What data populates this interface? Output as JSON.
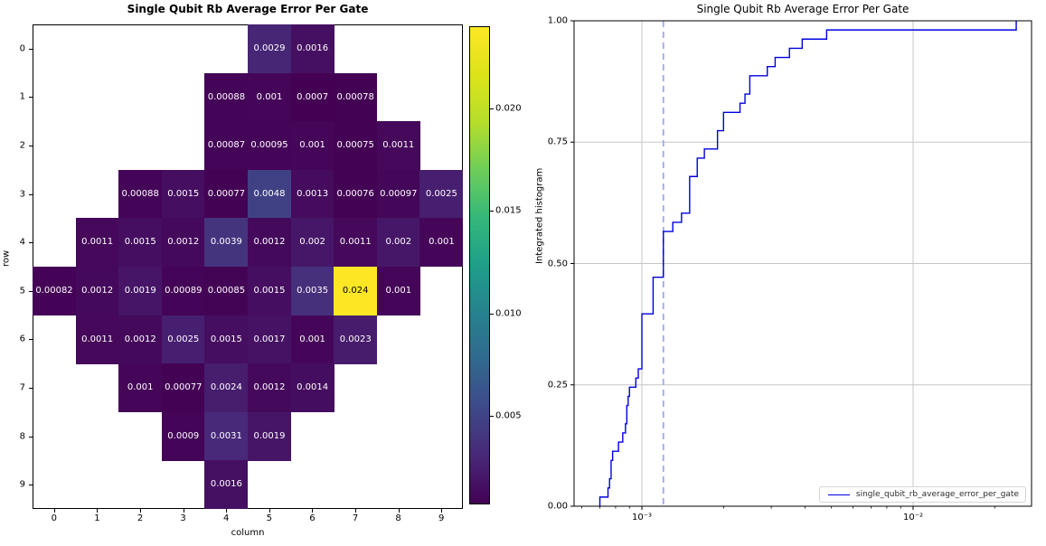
{
  "figure": {
    "background": "#ffffff",
    "spine_color": "#000000",
    "grid_color": "#c6c6c6"
  },
  "chart_data": [
    {
      "type": "heatmap",
      "title": "Single Qubit Rb Average Error Per Gate",
      "xlabel": "column",
      "ylabel": "row",
      "x_ticks": [
        "0",
        "1",
        "2",
        "3",
        "4",
        "5",
        "6",
        "7",
        "8",
        "9"
      ],
      "y_ticks": [
        "0",
        "1",
        "2",
        "3",
        "4",
        "5",
        "6",
        "7",
        "8",
        "9"
      ],
      "colormap": "viridis",
      "vmin": 0.0007,
      "vmax": 0.024,
      "colorbar_tick_values": [
        0.005,
        0.01,
        0.015,
        0.02
      ],
      "colorbar_tick_labels": [
        "0.005",
        "0.010",
        "0.015",
        "0.020"
      ],
      "cells": [
        {
          "row": 0,
          "col": 5,
          "value": 0.0029,
          "label": "0.0029"
        },
        {
          "row": 0,
          "col": 6,
          "value": 0.0016,
          "label": "0.0016"
        },
        {
          "row": 1,
          "col": 4,
          "value": 0.00088,
          "label": "0.00088"
        },
        {
          "row": 1,
          "col": 5,
          "value": 0.001,
          "label": "0.001"
        },
        {
          "row": 1,
          "col": 6,
          "value": 0.0007,
          "label": "0.0007"
        },
        {
          "row": 1,
          "col": 7,
          "value": 0.00078,
          "label": "0.00078"
        },
        {
          "row": 2,
          "col": 4,
          "value": 0.00087,
          "label": "0.00087"
        },
        {
          "row": 2,
          "col": 5,
          "value": 0.00095,
          "label": "0.00095"
        },
        {
          "row": 2,
          "col": 6,
          "value": 0.001,
          "label": "0.001"
        },
        {
          "row": 2,
          "col": 7,
          "value": 0.00075,
          "label": "0.00075"
        },
        {
          "row": 2,
          "col": 8,
          "value": 0.0011,
          "label": "0.0011"
        },
        {
          "row": 3,
          "col": 2,
          "value": 0.00088,
          "label": "0.00088"
        },
        {
          "row": 3,
          "col": 3,
          "value": 0.0015,
          "label": "0.0015"
        },
        {
          "row": 3,
          "col": 4,
          "value": 0.00077,
          "label": "0.00077"
        },
        {
          "row": 3,
          "col": 5,
          "value": 0.0048,
          "label": "0.0048"
        },
        {
          "row": 3,
          "col": 6,
          "value": 0.0013,
          "label": "0.0013"
        },
        {
          "row": 3,
          "col": 7,
          "value": 0.00076,
          "label": "0.00076"
        },
        {
          "row": 3,
          "col": 8,
          "value": 0.00097,
          "label": "0.00097"
        },
        {
          "row": 3,
          "col": 9,
          "value": 0.0025,
          "label": "0.0025"
        },
        {
          "row": 4,
          "col": 1,
          "value": 0.0011,
          "label": "0.0011"
        },
        {
          "row": 4,
          "col": 2,
          "value": 0.0015,
          "label": "0.0015"
        },
        {
          "row": 4,
          "col": 3,
          "value": 0.0012,
          "label": "0.0012"
        },
        {
          "row": 4,
          "col": 4,
          "value": 0.0039,
          "label": "0.0039"
        },
        {
          "row": 4,
          "col": 5,
          "value": 0.0012,
          "label": "0.0012"
        },
        {
          "row": 4,
          "col": 6,
          "value": 0.002,
          "label": "0.002"
        },
        {
          "row": 4,
          "col": 7,
          "value": 0.0011,
          "label": "0.0011"
        },
        {
          "row": 4,
          "col": 8,
          "value": 0.002,
          "label": "0.002"
        },
        {
          "row": 4,
          "col": 9,
          "value": 0.001,
          "label": "0.001"
        },
        {
          "row": 5,
          "col": 0,
          "value": 0.00082,
          "label": "0.00082"
        },
        {
          "row": 5,
          "col": 1,
          "value": 0.0012,
          "label": "0.0012"
        },
        {
          "row": 5,
          "col": 2,
          "value": 0.0019,
          "label": "0.0019"
        },
        {
          "row": 5,
          "col": 3,
          "value": 0.00089,
          "label": "0.00089"
        },
        {
          "row": 5,
          "col": 4,
          "value": 0.00085,
          "label": "0.00085"
        },
        {
          "row": 5,
          "col": 5,
          "value": 0.0015,
          "label": "0.0015"
        },
        {
          "row": 5,
          "col": 6,
          "value": 0.0035,
          "label": "0.0035"
        },
        {
          "row": 5,
          "col": 7,
          "value": 0.024,
          "label": "0.024"
        },
        {
          "row": 5,
          "col": 8,
          "value": 0.001,
          "label": "0.001"
        },
        {
          "row": 6,
          "col": 1,
          "value": 0.0011,
          "label": "0.0011"
        },
        {
          "row": 6,
          "col": 2,
          "value": 0.0012,
          "label": "0.0012"
        },
        {
          "row": 6,
          "col": 3,
          "value": 0.0025,
          "label": "0.0025"
        },
        {
          "row": 6,
          "col": 4,
          "value": 0.0015,
          "label": "0.0015"
        },
        {
          "row": 6,
          "col": 5,
          "value": 0.0017,
          "label": "0.0017"
        },
        {
          "row": 6,
          "col": 6,
          "value": 0.001,
          "label": "0.001"
        },
        {
          "row": 6,
          "col": 7,
          "value": 0.0023,
          "label": "0.0023"
        },
        {
          "row": 7,
          "col": 2,
          "value": 0.001,
          "label": "0.001"
        },
        {
          "row": 7,
          "col": 3,
          "value": 0.00077,
          "label": "0.00077"
        },
        {
          "row": 7,
          "col": 4,
          "value": 0.0024,
          "label": "0.0024"
        },
        {
          "row": 7,
          "col": 5,
          "value": 0.0012,
          "label": "0.0012"
        },
        {
          "row": 7,
          "col": 6,
          "value": 0.0014,
          "label": "0.0014"
        },
        {
          "row": 8,
          "col": 3,
          "value": 0.0009,
          "label": "0.0009"
        },
        {
          "row": 8,
          "col": 4,
          "value": 0.0031,
          "label": "0.0031"
        },
        {
          "row": 8,
          "col": 5,
          "value": 0.0019,
          "label": "0.0019"
        },
        {
          "row": 9,
          "col": 4,
          "value": 0.0016,
          "label": "0.0016"
        }
      ]
    },
    {
      "type": "line",
      "subtype": "integrated-histogram-step",
      "title": "Single Qubit Rb Average Error Per Gate",
      "xlabel": "",
      "ylabel": "Integrated histogram",
      "xscale": "log",
      "xlim": [
        0.00056,
        0.0272
      ],
      "ylim": [
        0.0,
        1.0
      ],
      "x_tick_values": [
        0.001,
        0.01
      ],
      "x_tick_labels": [
        "10⁻³",
        "10⁻²"
      ],
      "y_tick_values": [
        0.0,
        0.25,
        0.5,
        0.75,
        1.0
      ],
      "y_tick_labels": [
        "0.00",
        "0.25",
        "0.50",
        "0.75",
        "1.00"
      ],
      "grid": true,
      "legend_position": "lower right",
      "median_value": 0.0012,
      "median_line_color": "#9fa9e6",
      "line_color": "#0000e0",
      "series": [
        {
          "name": "single_qubit_rb_average_error_per_gate",
          "values_sorted": [
            0.0007,
            0.00075,
            0.00076,
            0.00077,
            0.00077,
            0.00078,
            0.00082,
            0.00085,
            0.00087,
            0.00088,
            0.00088,
            0.00089,
            0.0009,
            0.00095,
            0.00097,
            0.001,
            0.001,
            0.001,
            0.001,
            0.001,
            0.001,
            0.0011,
            0.0011,
            0.0011,
            0.0011,
            0.0012,
            0.0012,
            0.0012,
            0.0012,
            0.0012,
            0.0013,
            0.0014,
            0.0015,
            0.0015,
            0.0015,
            0.0015,
            0.0016,
            0.0016,
            0.0017,
            0.0019,
            0.0019,
            0.002,
            0.002,
            0.0023,
            0.0024,
            0.0025,
            0.0025,
            0.0029,
            0.0031,
            0.0035,
            0.0039,
            0.0048,
            0.024
          ],
          "y_definition": "cumulative fraction i/53"
        }
      ]
    }
  ]
}
